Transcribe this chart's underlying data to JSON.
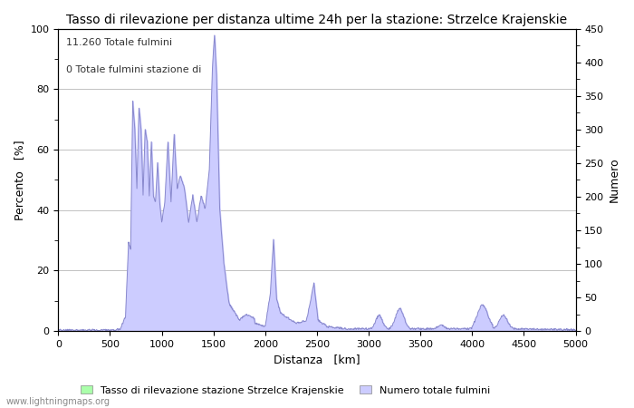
{
  "title": "Tasso di rilevazione per distanza ultime 24h per la stazione: Strzelce Krajenskie",
  "xlabel": "Distanza   [km]",
  "ylabel_left": "Percento   [%]",
  "ylabel_right": "Numero",
  "annotation_line1": "11.260 Totale fulmini",
  "annotation_line2": "0 Totale fulmini stazione di",
  "legend_label1": "Tasso di rilevazione stazione Strzelce Krajenskie",
  "legend_label2": "Numero totale fulmini",
  "watermark": "www.lightningmaps.org",
  "xlim": [
    0,
    5000
  ],
  "ylim_left": [
    0,
    100
  ],
  "ylim_right": [
    0,
    450
  ],
  "xticks": [
    0,
    500,
    1000,
    1500,
    2000,
    2500,
    3000,
    3500,
    4000,
    4500,
    5000
  ],
  "yticks_left": [
    0,
    20,
    40,
    60,
    80,
    100
  ],
  "yticks_right": [
    0,
    50,
    100,
    150,
    200,
    250,
    300,
    350,
    400,
    450
  ],
  "fill_color_detection": "#aaffaa",
  "fill_color_number": "#ccccff",
  "line_color": "#8888cc",
  "bg_color": "#ffffff",
  "title_fontsize": 10,
  "axis_fontsize": 9,
  "tick_fontsize": 8,
  "annotation_fontsize": 8,
  "watermark_fontsize": 7,
  "number_scale": 4.5
}
